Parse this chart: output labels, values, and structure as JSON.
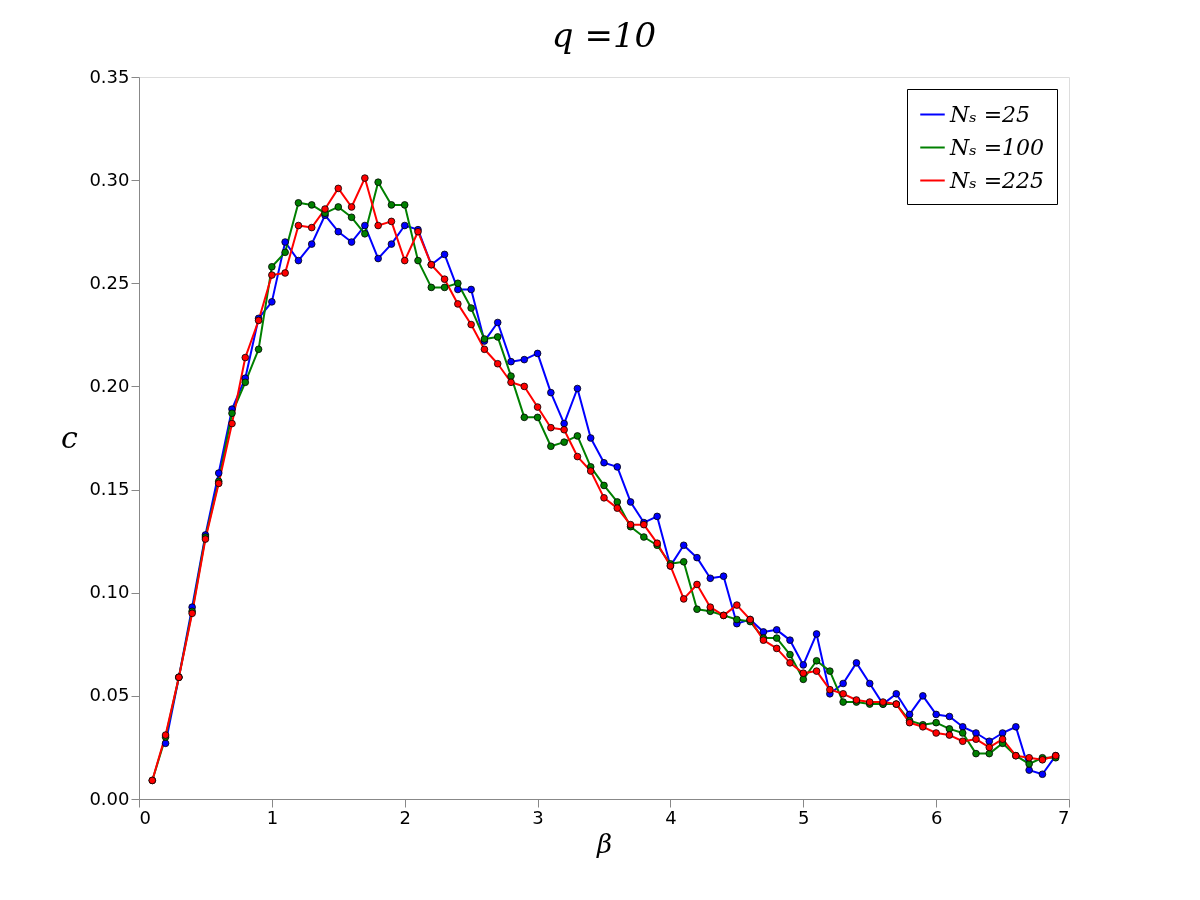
{
  "chart_data": {
    "type": "line",
    "title": "q =10",
    "xlabel": "β",
    "ylabel": "c",
    "x": [
      0.1,
      0.2,
      0.3,
      0.4,
      0.5,
      0.6,
      0.7,
      0.8,
      0.9,
      1.0,
      1.1,
      1.2,
      1.3,
      1.4,
      1.5,
      1.6,
      1.7,
      1.8,
      1.9,
      2.0,
      2.1,
      2.2,
      2.3,
      2.4,
      2.5,
      2.6,
      2.7,
      2.8,
      2.9,
      3.0,
      3.1,
      3.2,
      3.3,
      3.4,
      3.5,
      3.6,
      3.7,
      3.8,
      3.9,
      4.0,
      4.1,
      4.2,
      4.3,
      4.4,
      4.5,
      4.6,
      4.7,
      4.8,
      4.9,
      5.0,
      5.1,
      5.2,
      5.3,
      5.4,
      5.5,
      5.6,
      5.7,
      5.8,
      5.9,
      6.0,
      6.1,
      6.2,
      6.3,
      6.4,
      6.5,
      6.6,
      6.7,
      6.8,
      6.9
    ],
    "series": [
      {
        "name": "Nₛ =25",
        "color": "#0000ff",
        "values": [
          null,
          0.027,
          0.059,
          0.093,
          0.128,
          0.158,
          0.189,
          0.204,
          0.233,
          0.241,
          0.27,
          0.261,
          0.269,
          0.283,
          0.275,
          0.27,
          0.278,
          0.262,
          0.269,
          0.278,
          0.276,
          0.259,
          0.264,
          0.247,
          0.247,
          0.222,
          0.231,
          0.212,
          0.213,
          0.216,
          0.197,
          0.182,
          0.199,
          0.175,
          0.163,
          0.161,
          0.144,
          0.134,
          0.137,
          0.113,
          0.123,
          0.117,
          0.107,
          0.108,
          0.085,
          0.087,
          0.081,
          0.082,
          0.077,
          0.065,
          0.08,
          0.051,
          0.056,
          0.066,
          0.056,
          0.046,
          0.051,
          0.041,
          0.05,
          0.041,
          0.04,
          0.035,
          0.032,
          0.028,
          0.032,
          0.035,
          0.014,
          0.012,
          0.021
        ]
      },
      {
        "name": "Nₛ =100",
        "color": "#008000",
        "values": [
          0.009,
          0.03,
          0.059,
          0.091,
          0.127,
          0.154,
          0.187,
          0.202,
          0.218,
          0.258,
          0.265,
          0.289,
          0.288,
          0.284,
          0.287,
          0.282,
          0.274,
          0.299,
          0.288,
          0.288,
          0.261,
          0.248,
          0.248,
          0.25,
          0.238,
          0.223,
          0.224,
          0.205,
          0.185,
          0.185,
          0.171,
          0.173,
          0.176,
          0.161,
          0.152,
          0.144,
          0.132,
          0.127,
          0.123,
          0.114,
          0.115,
          0.092,
          0.091,
          0.089,
          0.087,
          0.086,
          0.078,
          0.078,
          0.07,
          0.058,
          0.067,
          0.062,
          0.047,
          0.047,
          0.046,
          0.046,
          0.046,
          0.038,
          0.036,
          0.037,
          0.034,
          0.032,
          0.022,
          0.022,
          0.027,
          0.021,
          0.017,
          0.02,
          0.02
        ]
      },
      {
        "name": "Nₛ =225",
        "color": "#ff0000",
        "values": [
          0.009,
          0.031,
          0.059,
          0.09,
          0.126,
          0.153,
          0.182,
          0.214,
          0.232,
          0.254,
          0.255,
          0.278,
          0.277,
          0.286,
          0.296,
          0.287,
          0.301,
          0.278,
          0.28,
          0.261,
          0.275,
          0.259,
          0.252,
          0.24,
          0.23,
          0.218,
          0.211,
          0.202,
          0.2,
          0.19,
          0.18,
          0.179,
          0.166,
          0.159,
          0.146,
          0.141,
          0.133,
          0.133,
          0.124,
          0.113,
          0.097,
          0.104,
          0.093,
          0.089,
          0.094,
          0.087,
          0.077,
          0.073,
          0.066,
          0.061,
          0.062,
          0.053,
          0.051,
          0.048,
          0.047,
          0.047,
          0.046,
          0.037,
          0.035,
          0.032,
          0.031,
          0.028,
          0.029,
          0.025,
          0.029,
          0.021,
          0.02,
          0.019,
          0.021
        ]
      }
    ],
    "xlim": [
      0,
      7
    ],
    "xticks": [
      0,
      1,
      2,
      3,
      4,
      5,
      6,
      7
    ],
    "ylim": [
      0,
      0.35
    ],
    "yticks": [
      {
        "value": 0,
        "label": "0.00"
      },
      {
        "value": 0.05,
        "label": "0.05"
      },
      {
        "value": 0.1,
        "label": "0.10"
      },
      {
        "value": 0.15,
        "label": "0.15"
      },
      {
        "value": 0.2,
        "label": "0.20"
      },
      {
        "value": 0.25,
        "label": "0.25"
      },
      {
        "value": 0.3,
        "label": "0.30"
      },
      {
        "value": 0.35,
        "label": "0.35"
      }
    ],
    "grid": false,
    "legend": "top right",
    "marker": "circle",
    "line_style": "solid"
  }
}
